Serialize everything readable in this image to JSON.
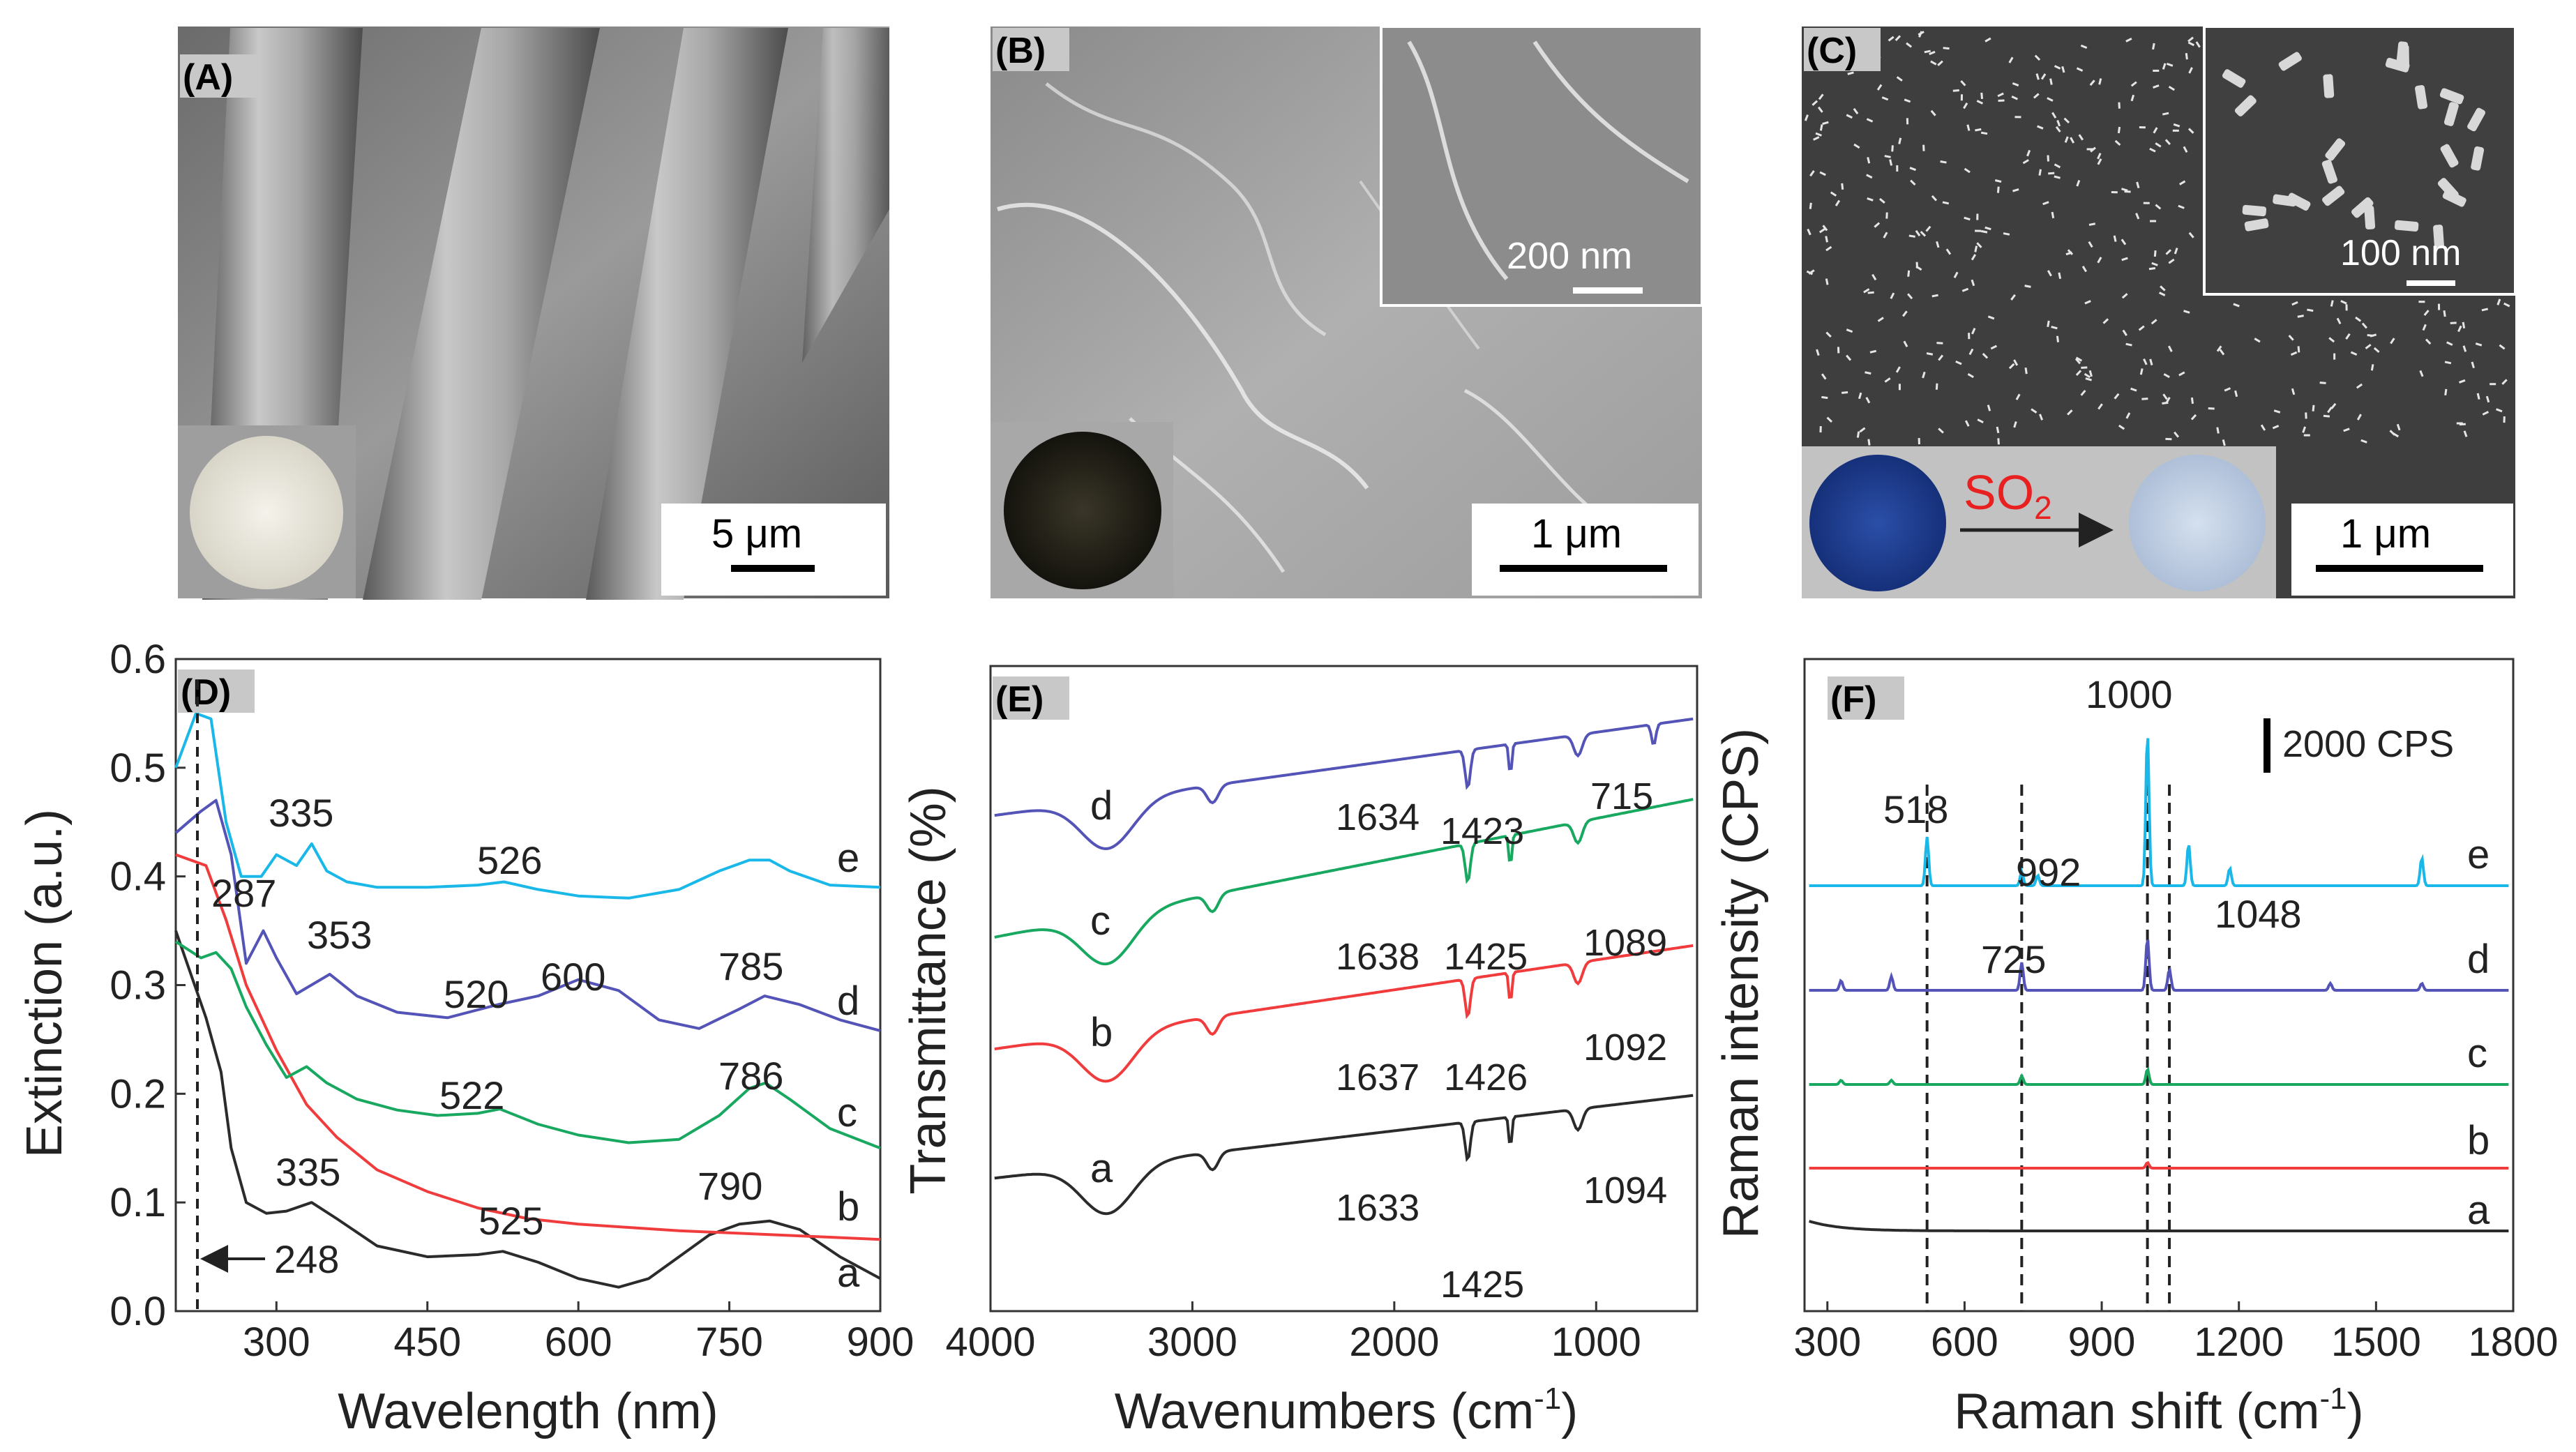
{
  "panels": {
    "A": {
      "label": "(A)",
      "scale": "5 μm"
    },
    "B": {
      "label": "(B)",
      "scale": "1 μm",
      "inset_scale": "200 nm"
    },
    "C": {
      "label": "(C)",
      "scale": "1 μm",
      "inset_scale": "100 nm",
      "gas": "SO",
      "gas_sub": "2"
    },
    "D": {
      "label": "(D)"
    },
    "E": {
      "label": "(E)"
    },
    "F": {
      "label": "(F)",
      "scalebar": "2000 CPS"
    }
  },
  "colors": {
    "a": "#2b2b2b",
    "b": "#f03c3c",
    "c": "#18a860",
    "d": "#5454b8",
    "e": "#19b8e8"
  },
  "chart_data": [
    {
      "id": "D",
      "type": "line",
      "xlabel": "Wavelength (nm)",
      "ylabel": "Extinction (a.u.)",
      "xlim": [
        200,
        900
      ],
      "ylim": [
        0.0,
        0.6
      ],
      "xticks": [
        "300",
        "450",
        "600",
        "750",
        "900"
      ],
      "yticks": [
        "0.0",
        "0.1",
        "0.2",
        "0.3",
        "0.4",
        "0.5",
        "0.6"
      ],
      "series": [
        {
          "name": "a",
          "x": [
            200,
            230,
            245,
            255,
            270,
            290,
            310,
            335,
            360,
            400,
            450,
            500,
            525,
            560,
            600,
            640,
            670,
            700,
            730,
            760,
            790,
            820,
            860,
            900
          ],
          "y": [
            0.35,
            0.27,
            0.22,
            0.15,
            0.1,
            0.09,
            0.092,
            0.1,
            0.085,
            0.06,
            0.05,
            0.052,
            0.055,
            0.045,
            0.03,
            0.022,
            0.03,
            0.05,
            0.07,
            0.08,
            0.083,
            0.075,
            0.05,
            0.03
          ]
        },
        {
          "name": "b",
          "x": [
            200,
            230,
            250,
            270,
            300,
            330,
            360,
            400,
            450,
            500,
            550,
            600,
            650,
            700,
            750,
            800,
            850,
            900
          ],
          "y": [
            0.42,
            0.41,
            0.36,
            0.3,
            0.24,
            0.19,
            0.16,
            0.13,
            0.11,
            0.095,
            0.085,
            0.08,
            0.077,
            0.074,
            0.072,
            0.07,
            0.068,
            0.066
          ]
        },
        {
          "name": "c",
          "x": [
            200,
            225,
            240,
            255,
            270,
            290,
            310,
            330,
            350,
            380,
            420,
            460,
            500,
            522,
            560,
            600,
            650,
            700,
            740,
            770,
            786,
            810,
            850,
            900
          ],
          "y": [
            0.34,
            0.325,
            0.33,
            0.315,
            0.28,
            0.245,
            0.215,
            0.225,
            0.21,
            0.195,
            0.185,
            0.18,
            0.182,
            0.186,
            0.172,
            0.162,
            0.155,
            0.158,
            0.18,
            0.205,
            0.21,
            0.195,
            0.168,
            0.15
          ]
        },
        {
          "name": "d",
          "x": [
            200,
            225,
            240,
            255,
            270,
            287,
            300,
            320,
            353,
            380,
            420,
            470,
            520,
            560,
            600,
            640,
            680,
            720,
            760,
            785,
            820,
            860,
            900
          ],
          "y": [
            0.44,
            0.46,
            0.47,
            0.42,
            0.32,
            0.35,
            0.325,
            0.292,
            0.31,
            0.29,
            0.275,
            0.27,
            0.282,
            0.29,
            0.305,
            0.295,
            0.268,
            0.26,
            0.278,
            0.29,
            0.282,
            0.268,
            0.258
          ]
        },
        {
          "name": "e",
          "x": [
            200,
            220,
            235,
            250,
            265,
            285,
            300,
            320,
            335,
            350,
            370,
            400,
            450,
            500,
            526,
            560,
            600,
            650,
            700,
            740,
            770,
            790,
            810,
            850,
            900
          ],
          "y": [
            0.5,
            0.55,
            0.545,
            0.45,
            0.4,
            0.4,
            0.42,
            0.41,
            0.43,
            0.405,
            0.395,
            0.39,
            0.39,
            0.392,
            0.395,
            0.388,
            0.382,
            0.38,
            0.388,
            0.405,
            0.415,
            0.415,
            0.405,
            0.392,
            0.39
          ]
        }
      ],
      "curve_labels": [
        "a",
        "b",
        "c",
        "d",
        "e"
      ],
      "peak_labels": [
        "335",
        "526",
        "287",
        "353",
        "520",
        "600",
        "785",
        "522",
        "786",
        "335",
        "525",
        "790",
        "248"
      ]
    },
    {
      "id": "E",
      "type": "line",
      "xlabel": "Wavenumbers (cm",
      "xlabel_sup": "-1",
      "xlabel_end": ")",
      "ylabel": "Transmittance (%)",
      "xlim": [
        4000,
        500
      ],
      "xticks": [
        "4000",
        "3000",
        "2000",
        "1000"
      ],
      "curve_labels": [
        "a",
        "b",
        "c",
        "d"
      ],
      "peak_labels": {
        "a": [
          "1633",
          "1425",
          "1094"
        ],
        "b": [
          "1637",
          "1426",
          "1092"
        ],
        "c": [
          "1638",
          "1425",
          "1089"
        ],
        "d": [
          "1634",
          "1423",
          "715"
        ]
      }
    },
    {
      "id": "F",
      "type": "line",
      "xlabel": "Raman shift (cm",
      "xlabel_sup": "-1",
      "xlabel_end": ")",
      "ylabel": "Raman intensity (CPS)",
      "xlim": [
        250,
        1800
      ],
      "xticks": [
        "300",
        "600",
        "900",
        "1200",
        "1500",
        "1800"
      ],
      "curve_labels": [
        "a",
        "b",
        "c",
        "d",
        "e"
      ],
      "peak_labels": [
        "1000",
        "518",
        "992",
        "725",
        "1048"
      ]
    }
  ]
}
